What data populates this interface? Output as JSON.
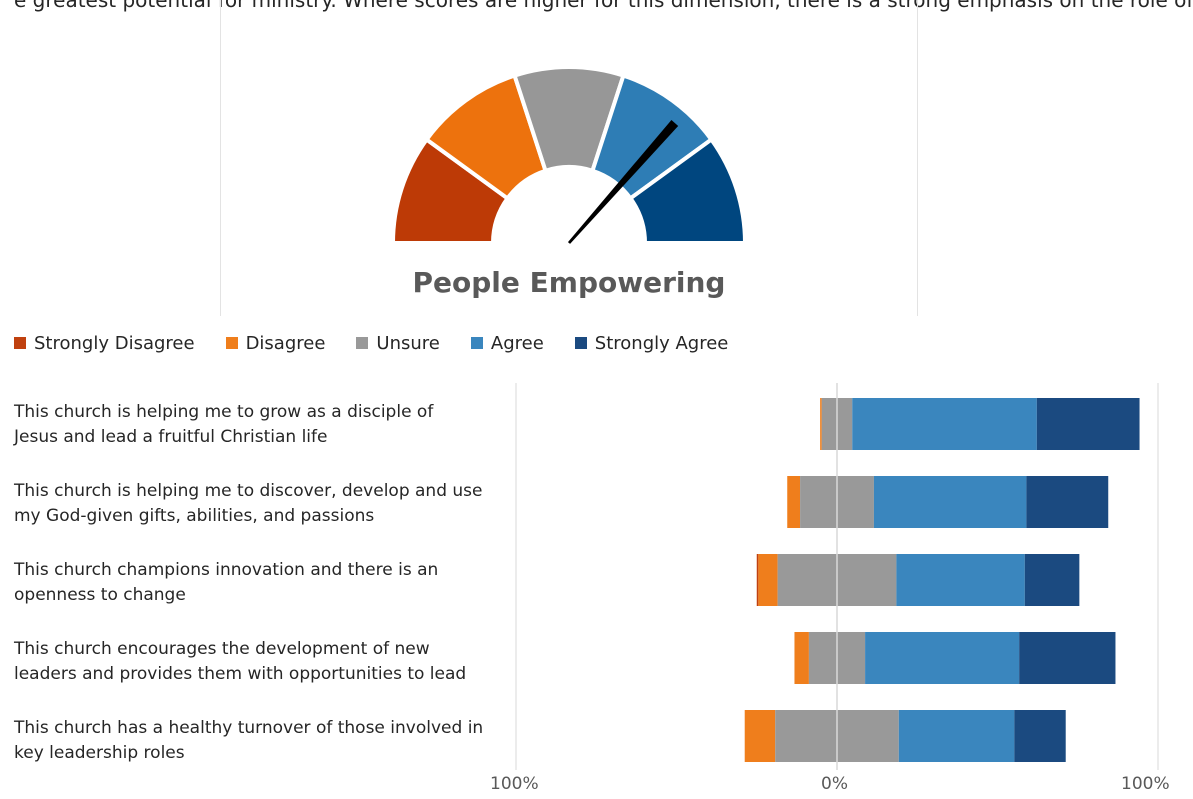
{
  "header_strip_text": "e greatest potential for ministry. Where scores are higher for this dimension, there is a strong emphasis on the role of lay people across all aspects of a church's life. Lay people",
  "gauge": {
    "title": "People Empowering",
    "needle_value": 0.73,
    "segment_colors": [
      "#bd3a06",
      "#ed720d",
      "#979797",
      "#2e7db5",
      "#00467f"
    ]
  },
  "legend": [
    {
      "label": "Strongly Disagree",
      "color": "#c0410f"
    },
    {
      "label": "Disagree",
      "color": "#ef7e1c"
    },
    {
      "label": "Unsure",
      "color": "#999999"
    },
    {
      "label": "Agree",
      "color": "#3a86be"
    },
    {
      "label": "Strongly Agree",
      "color": "#1b4a80"
    }
  ],
  "chart_data": {
    "type": "bar",
    "orientation": "horizontal",
    "stacked": "diverging",
    "categories": [
      "This church is helping me to grow as a disciple of Jesus and lead a fruitful Christian life",
      "This church is helping me to discover, develop and use my God-given gifts, abilities, and passions",
      "This church champions innovation and there is an openness to change",
      "This church encourages the development of new leaders and provides them with opportunities to lead",
      "This church has a healthy turnover of those involved in key leadership roles"
    ],
    "category_lines": [
      [
        "This church is helping me to grow as a disciple of",
        "Jesus and lead a fruitful Christian life"
      ],
      [
        "This church is helping me to discover, develop and use",
        "my God-given gifts, abilities, and passions"
      ],
      [
        "This church champions innovation and there is an",
        "openness to change"
      ],
      [
        "This church encourages the development of new",
        "leaders and provides them with opportunities to lead"
      ],
      [
        "This church has a healthy turnover of those involved in",
        "key leadership roles"
      ]
    ],
    "series": [
      {
        "name": "Strongly Disagree",
        "color": "#c0410f",
        "values": [
          0,
          0,
          0.5,
          0,
          0
        ]
      },
      {
        "name": "Disagree",
        "color": "#ef7e1c",
        "values": [
          0.5,
          4,
          6,
          4.5,
          9.5
        ]
      },
      {
        "name": "Unsure",
        "color": "#999999",
        "values": [
          9.5,
          23,
          37,
          17.5,
          38.5
        ]
      },
      {
        "name": "Agree",
        "color": "#3a86be",
        "values": [
          57.5,
          47.5,
          40,
          48,
          36
        ]
      },
      {
        "name": "Strongly Agree",
        "color": "#1b4a80",
        "values": [
          32,
          25.5,
          17,
          30,
          16
        ]
      }
    ],
    "xlim": [
      -100,
      100
    ],
    "tick_labels": [
      "100%",
      "0%",
      "100%"
    ]
  }
}
